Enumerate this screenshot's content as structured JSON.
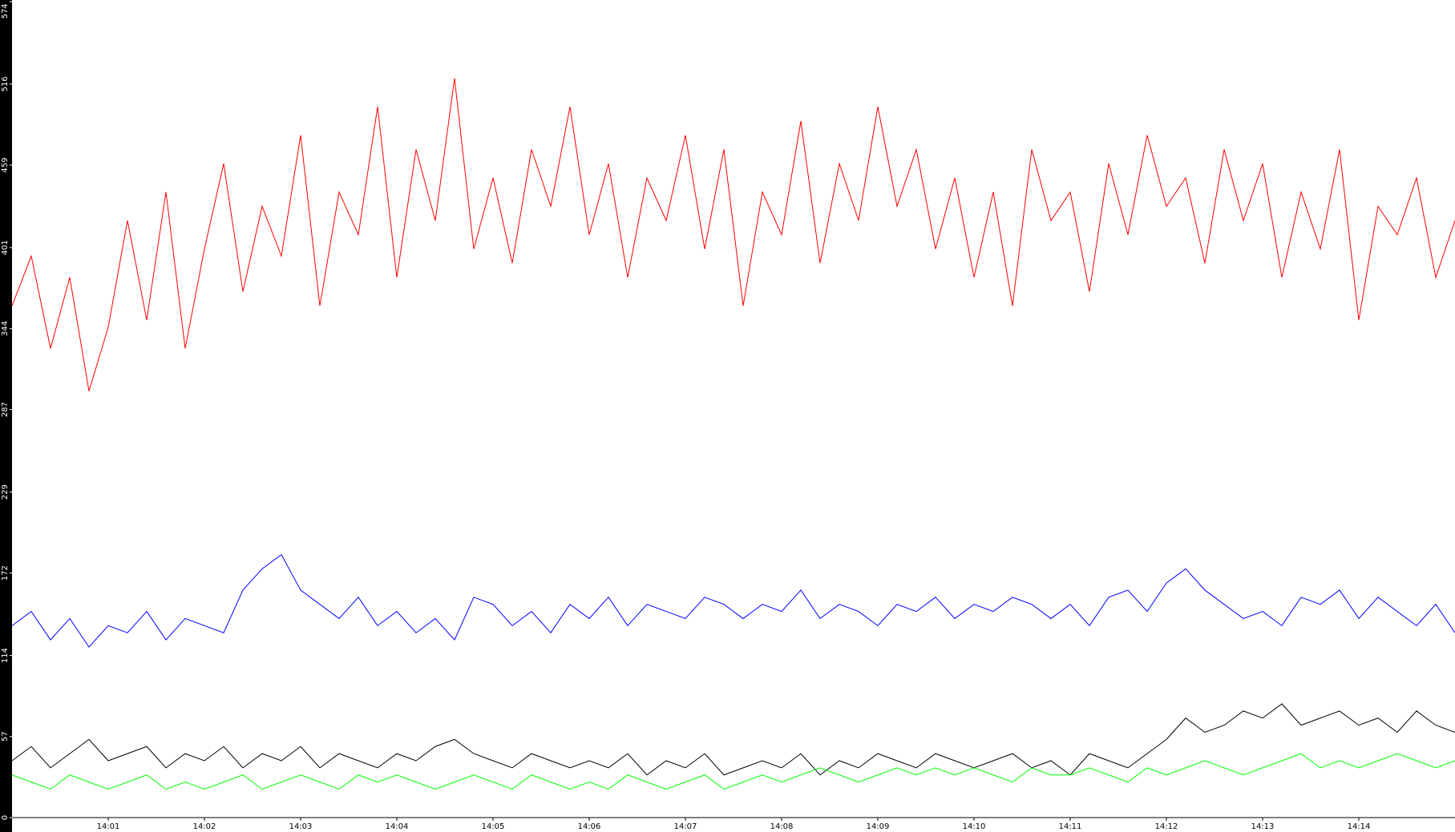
{
  "chart_data": {
    "type": "line",
    "x": [
      0,
      0.2,
      0.4,
      0.6,
      0.8,
      1,
      1.2,
      1.4,
      1.6,
      1.8,
      2,
      2.2,
      2.4,
      2.6,
      2.8,
      3,
      3.2,
      3.4,
      3.6,
      3.8,
      4,
      4.2,
      4.4,
      4.6,
      4.8,
      5,
      5.2,
      5.4,
      5.6,
      5.8,
      6,
      6.2,
      6.4,
      6.6,
      6.8,
      7,
      7.2,
      7.4,
      7.6,
      7.8,
      8,
      8.2,
      8.4,
      8.6,
      8.8,
      9,
      9.2,
      9.4,
      9.6,
      9.8,
      10,
      10.2,
      10.4,
      10.6,
      10.8,
      11,
      11.2,
      11.4,
      11.6,
      11.8,
      12,
      12.2,
      12.4,
      12.6,
      12.8,
      13,
      13.2,
      13.4,
      13.6,
      13.8,
      14,
      14.2,
      14.4,
      14.6,
      14.8,
      15
    ],
    "series": [
      {
        "color": "#ff0000",
        "values": [
          360,
          395,
          330,
          380,
          300,
          345,
          420,
          350,
          440,
          330,
          400,
          460,
          370,
          430,
          395,
          480,
          360,
          440,
          410,
          500,
          380,
          470,
          420,
          520,
          400,
          450,
          390,
          470,
          430,
          500,
          410,
          460,
          380,
          450,
          420,
          480,
          400,
          470,
          360,
          440,
          410,
          490,
          390,
          460,
          420,
          500,
          430,
          470,
          400,
          450,
          380,
          440,
          360,
          470,
          420,
          440,
          370,
          460,
          410,
          480,
          430,
          450,
          390,
          470,
          420,
          460,
          380,
          440,
          400,
          470,
          350,
          430,
          410,
          450,
          380,
          420
        ]
      },
      {
        "color": "#0000ff",
        "values": [
          135,
          145,
          125,
          140,
          120,
          135,
          130,
          145,
          125,
          140,
          135,
          130,
          160,
          175,
          185,
          160,
          150,
          140,
          155,
          135,
          145,
          130,
          140,
          125,
          155,
          150,
          135,
          145,
          130,
          150,
          140,
          155,
          135,
          150,
          145,
          140,
          155,
          150,
          140,
          150,
          145,
          160,
          140,
          150,
          145,
          135,
          150,
          145,
          155,
          140,
          150,
          145,
          155,
          150,
          140,
          150,
          135,
          155,
          160,
          145,
          165,
          175,
          160,
          150,
          140,
          145,
          135,
          155,
          150,
          160,
          140,
          155,
          145,
          135,
          150,
          130
        ]
      },
      {
        "color": "#000000",
        "values": [
          40,
          50,
          35,
          45,
          55,
          40,
          45,
          50,
          35,
          45,
          40,
          50,
          35,
          45,
          40,
          50,
          35,
          45,
          40,
          35,
          45,
          40,
          50,
          55,
          45,
          40,
          35,
          45,
          40,
          35,
          40,
          35,
          45,
          30,
          40,
          35,
          45,
          30,
          35,
          40,
          35,
          45,
          30,
          40,
          35,
          45,
          40,
          35,
          45,
          40,
          35,
          40,
          45,
          35,
          40,
          30,
          45,
          40,
          35,
          45,
          55,
          70,
          60,
          65,
          75,
          70,
          80,
          65,
          70,
          75,
          65,
          70,
          60,
          75,
          65,
          60
        ]
      },
      {
        "color": "#00ff00",
        "values": [
          30,
          25,
          20,
          30,
          25,
          20,
          25,
          30,
          20,
          25,
          20,
          25,
          30,
          20,
          25,
          30,
          25,
          20,
          30,
          25,
          30,
          25,
          20,
          25,
          30,
          25,
          20,
          30,
          25,
          20,
          25,
          20,
          30,
          25,
          20,
          25,
          30,
          20,
          25,
          30,
          25,
          30,
          35,
          30,
          25,
          30,
          35,
          30,
          35,
          30,
          35,
          30,
          25,
          35,
          30,
          30,
          35,
          30,
          25,
          35,
          30,
          35,
          40,
          35,
          30,
          35,
          40,
          45,
          35,
          40,
          35,
          40,
          45,
          40,
          35,
          40
        ]
      }
    ],
    "xlim": [
      0,
      15
    ],
    "xticks": [
      {
        "value": 1,
        "label": "14:01"
      },
      {
        "value": 2,
        "label": "14:02"
      },
      {
        "value": 3,
        "label": "14:03"
      },
      {
        "value": 4,
        "label": "14:04"
      },
      {
        "value": 5,
        "label": "14:05"
      },
      {
        "value": 6,
        "label": "14:06"
      },
      {
        "value": 7,
        "label": "14:07"
      },
      {
        "value": 8,
        "label": "14:08"
      },
      {
        "value": 9,
        "label": "14:09"
      },
      {
        "value": 10,
        "label": "14:10"
      },
      {
        "value": 11,
        "label": "14:11"
      },
      {
        "value": 12,
        "label": "14:12"
      },
      {
        "value": 13,
        "label": "14:13"
      },
      {
        "value": 14,
        "label": "14:14"
      }
    ],
    "ylim": [
      0,
      574
    ],
    "yticks": [
      0,
      57,
      114,
      172,
      229,
      287,
      344,
      401,
      459,
      516,
      574
    ]
  }
}
